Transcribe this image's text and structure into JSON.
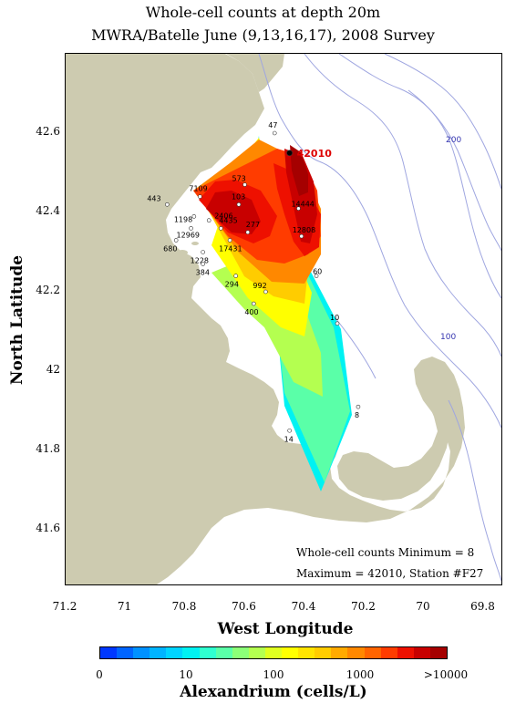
{
  "title_line1": "Whole-cell counts at  depth 20m",
  "title_line2": "MWRA/Batelle June (9,13,16,17), 2008 Survey",
  "xlabel": "West Longitude",
  "ylabel": "North Latitude",
  "x_ticks": [
    "71.2",
    "71",
    "70.8",
    "70.6",
    "70.4",
    "70.2",
    "70",
    "69.8"
  ],
  "y_ticks": [
    "42.6",
    "42.4",
    "42.2",
    "42",
    "41.8",
    "41.6"
  ],
  "colorbar": {
    "label": "Alexandrium (cells/L)",
    "ticks": [
      "0",
      "10",
      "100",
      "1000",
      ">10000"
    ],
    "colors": [
      "#0037ff",
      "#0064ff",
      "#0091ff",
      "#00b4ff",
      "#00d4ff",
      "#00f2f2",
      "#2fffd0",
      "#5affa8",
      "#8cff78",
      "#b4ff50",
      "#e0ff20",
      "#ffff00",
      "#ffe400",
      "#ffcc00",
      "#ffaa00",
      "#ff8800",
      "#ff6400",
      "#ff3c00",
      "#ee1000",
      "#c80000",
      "#a50000"
    ]
  },
  "summary": {
    "min_text": "Whole-cell counts Minimum = 8",
    "max_text": "Maximum = 42010, Station #F27"
  },
  "contour_labels": {
    "c200": "200",
    "c100": "100"
  },
  "colors": {
    "land": "#cdcbb0",
    "bathymetry": "#9fa6e0",
    "highlight": "#dd0000"
  },
  "stations": [
    {
      "label": "47",
      "lon": 70.5,
      "lat": 42.6
    },
    {
      "label": "42010",
      "lon": 70.45,
      "lat": 42.55,
      "highlight": true
    },
    {
      "label": "573",
      "lon": 70.6,
      "lat": 42.47
    },
    {
      "label": "7109",
      "lon": 70.75,
      "lat": 42.44
    },
    {
      "label": "443",
      "lon": 70.86,
      "lat": 42.42
    },
    {
      "label": "103",
      "lon": 70.62,
      "lat": 42.42
    },
    {
      "label": "1198",
      "lon": 70.77,
      "lat": 42.39
    },
    {
      "label": "2406",
      "lon": 70.72,
      "lat": 42.38
    },
    {
      "label": "14444",
      "lon": 70.42,
      "lat": 42.41
    },
    {
      "label": "12969",
      "lon": 70.78,
      "lat": 42.36
    },
    {
      "label": "4435",
      "lon": 70.68,
      "lat": 42.36
    },
    {
      "label": "277",
      "lon": 70.59,
      "lat": 42.35
    },
    {
      "label": "12808",
      "lon": 70.41,
      "lat": 42.34
    },
    {
      "label": "17431",
      "lon": 70.65,
      "lat": 42.33
    },
    {
      "label": "680",
      "lon": 70.83,
      "lat": 42.33
    },
    {
      "label": "1228",
      "lon": 70.74,
      "lat": 42.3
    },
    {
      "label": "384",
      "lon": 70.74,
      "lat": 42.27
    },
    {
      "label": "294",
      "lon": 70.63,
      "lat": 42.24
    },
    {
      "label": "60",
      "lon": 70.36,
      "lat": 42.24
    },
    {
      "label": "992",
      "lon": 70.53,
      "lat": 42.2
    },
    {
      "label": "400",
      "lon": 70.57,
      "lat": 42.17
    },
    {
      "label": "10",
      "lon": 70.29,
      "lat": 42.12
    },
    {
      "label": "8",
      "lon": 70.22,
      "lat": 41.91
    },
    {
      "label": "14",
      "lon": 70.45,
      "lat": 41.85
    }
  ]
}
